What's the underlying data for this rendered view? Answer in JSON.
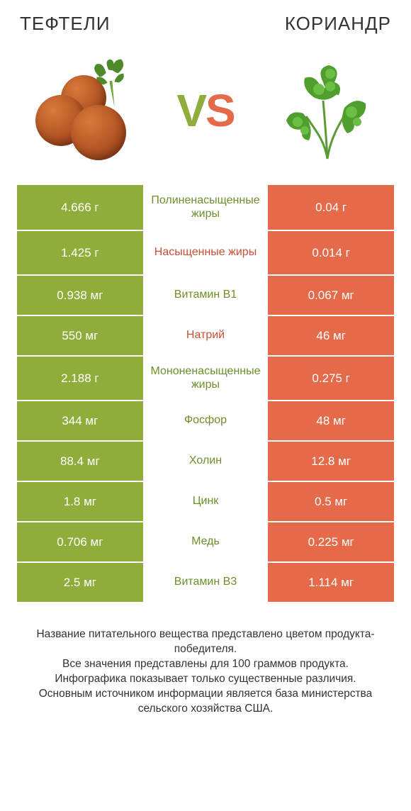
{
  "colors": {
    "left": "#8fad3a",
    "right": "#e46a4a",
    "left_label": "#6e8f2c",
    "right_label": "#c94f33",
    "text": "#333333",
    "bg": "#ffffff"
  },
  "header": {
    "left_title": "ТЕФТЕЛИ",
    "right_title": "КОРИАНДР"
  },
  "vs": {
    "v": "V",
    "s": "S"
  },
  "rows": [
    {
      "left": "4.666 г",
      "label": "Полиненасыщенные жиры",
      "right": "0.04 г",
      "winner": "left",
      "tall": true
    },
    {
      "left": "1.425 г",
      "label": "Насыщенные жиры",
      "right": "0.014 г",
      "winner": "right",
      "tall": true
    },
    {
      "left": "0.938 мг",
      "label": "Витамин B1",
      "right": "0.067 мг",
      "winner": "left",
      "tall": false
    },
    {
      "left": "550 мг",
      "label": "Натрий",
      "right": "46 мг",
      "winner": "right",
      "tall": false
    },
    {
      "left": "2.188 г",
      "label": "Мононенасыщенные жиры",
      "right": "0.275 г",
      "winner": "left",
      "tall": true
    },
    {
      "left": "344 мг",
      "label": "Фосфор",
      "right": "48 мг",
      "winner": "left",
      "tall": false
    },
    {
      "left": "88.4 мг",
      "label": "Холин",
      "right": "12.8 мг",
      "winner": "left",
      "tall": false
    },
    {
      "left": "1.8 мг",
      "label": "Цинк",
      "right": "0.5 мг",
      "winner": "left",
      "tall": false
    },
    {
      "left": "0.706 мг",
      "label": "Медь",
      "right": "0.225 мг",
      "winner": "left",
      "tall": false
    },
    {
      "left": "2.5 мг",
      "label": "Витамин B3",
      "right": "1.114 мг",
      "winner": "left",
      "tall": false
    }
  ],
  "footer_lines": [
    "Название питательного вещества представлено цветом продукта-победителя.",
    "Все значения представлены для 100 граммов продукта.",
    "Инфографика показывает только существенные различия.",
    "Основным источником информации является база министерства сельского хозяйства США."
  ]
}
